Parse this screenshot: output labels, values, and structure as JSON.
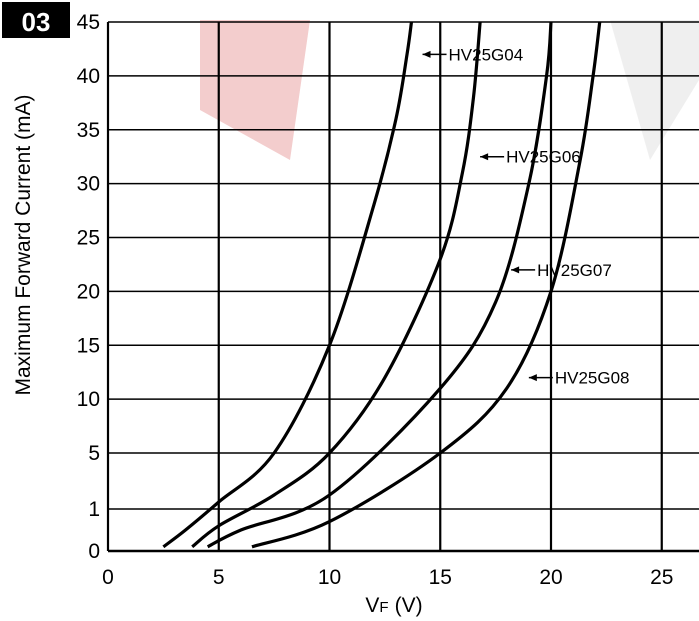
{
  "badge": "03",
  "chart_data": {
    "type": "line",
    "title": "",
    "xlabel_main": "V",
    "xlabel_sub": "F",
    "xlabel_unit": "(V)",
    "ylabel": "Maximum Forward Current (mA)",
    "x_ticks": [
      0,
      5,
      10,
      15,
      20,
      25
    ],
    "y_ticks": [
      "0",
      "1",
      "5",
      "10",
      "15",
      "20",
      "25",
      "30",
      "35",
      "40",
      "45"
    ],
    "xlim": [
      0,
      27
    ],
    "ylim_note": "non-linear: 0 to 1 then 5-unit steps",
    "grid": true,
    "series": [
      {
        "name": "HV25G04",
        "points": [
          [
            2.5,
            0.1
          ],
          [
            3.5,
            0.5
          ],
          [
            5,
            1.5
          ],
          [
            7.5,
            5
          ],
          [
            10,
            15
          ],
          [
            12,
            28
          ],
          [
            13,
            36
          ],
          [
            13.5,
            42
          ],
          [
            13.7,
            45
          ]
        ]
      },
      {
        "name": "HV25G06",
        "points": [
          [
            3.8,
            0.1
          ],
          [
            5,
            0.6
          ],
          [
            7.5,
            2
          ],
          [
            10,
            5
          ],
          [
            12.5,
            12
          ],
          [
            15,
            23
          ],
          [
            16,
            31
          ],
          [
            16.5,
            38
          ],
          [
            16.8,
            45
          ]
        ]
      },
      {
        "name": "HV25G07",
        "points": [
          [
            4.5,
            0.1
          ],
          [
            6,
            0.5
          ],
          [
            10,
            2
          ],
          [
            15,
            11
          ],
          [
            17.5,
            19
          ],
          [
            19,
            30
          ],
          [
            19.8,
            40
          ],
          [
            20,
            45
          ]
        ]
      },
      {
        "name": "HV25G08",
        "points": [
          [
            6.5,
            0.1
          ],
          [
            10,
            0.7
          ],
          [
            15,
            5
          ],
          [
            18,
            11
          ],
          [
            20,
            20
          ],
          [
            21.3,
            32
          ],
          [
            21.9,
            40
          ],
          [
            22.2,
            45
          ]
        ]
      }
    ],
    "labels": [
      {
        "text": "HV25G04",
        "x": 14.2,
        "y": 42
      },
      {
        "text": "HV25G06",
        "x": 16.8,
        "y": 32.5
      },
      {
        "text": "HV25G07",
        "x": 18.2,
        "y": 22
      },
      {
        "text": "HV25G08",
        "x": 19.0,
        "y": 12
      }
    ]
  }
}
